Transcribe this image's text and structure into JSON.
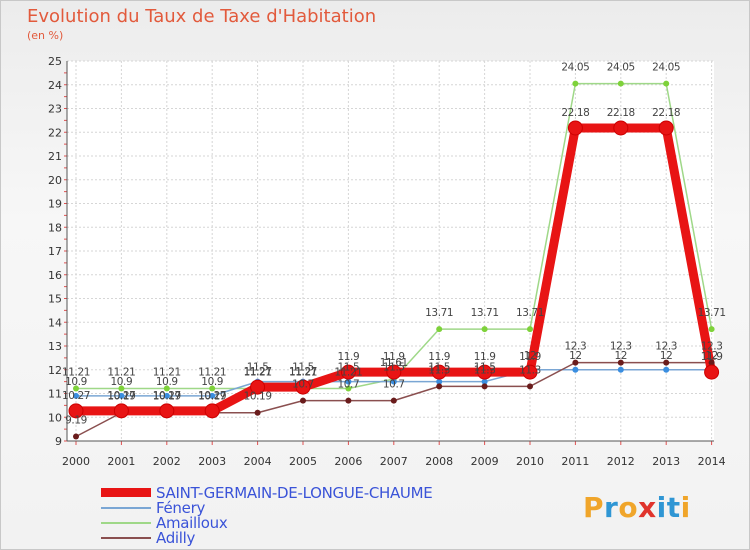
{
  "header": {
    "title": "Evolution du Taux de Taxe d'Habitation",
    "subtitle": "(en %)"
  },
  "brand": {
    "text": "Proxiti",
    "colors": [
      "#f0a52a",
      "#2f96d4",
      "#f0a52a",
      "#e0342c",
      "#2f96d4",
      "#2f96d4",
      "#f0a52a"
    ]
  },
  "chart_data": {
    "type": "line",
    "title": "Evolution du Taux de Taxe d'Habitation",
    "ylabel": "(en %)",
    "xlabel": "",
    "ylim": [
      9,
      25
    ],
    "yticks": [
      9,
      10,
      11,
      12,
      13,
      14,
      15,
      16,
      17,
      18,
      19,
      20,
      21,
      22,
      23,
      24,
      25
    ],
    "grid": true,
    "categories": [
      "2000",
      "2001",
      "2002",
      "2003",
      "2004",
      "2005",
      "2006",
      "2007",
      "2008",
      "2009",
      "2010",
      "2011",
      "2012",
      "2013",
      "2014"
    ],
    "series": [
      {
        "name": "SAINT-GERMAIN-DE-LONGUE-CHAUME",
        "color": "#e81414",
        "marker": "#e81414",
        "values": [
          10.27,
          10.27,
          10.27,
          10.27,
          11.27,
          11.27,
          11.9,
          11.9,
          11.9,
          11.9,
          11.9,
          22.18,
          22.18,
          22.18,
          11.9
        ],
        "labels": [
          "10.27",
          "10.27",
          "10.27",
          "10.27",
          "11.27",
          "11.27",
          "11.9",
          "11.9",
          "11.9",
          "11.9",
          "11.9",
          "22.18",
          "22.18",
          "22.18",
          "11.9"
        ]
      },
      {
        "name": "Fénery",
        "color": "#7aa6d4",
        "marker": "#3a8ee0",
        "values": [
          10.9,
          10.9,
          10.9,
          10.9,
          11.5,
          11.5,
          11.5,
          11.5,
          11.5,
          11.5,
          12.0,
          12.0,
          12.0,
          12.0,
          12.0
        ],
        "labels": [
          "10.9",
          "10.9",
          "10.9",
          "10.9",
          "11.5",
          "11.5",
          "11.5",
          "11.5",
          "11.5",
          "11.5",
          "12",
          "12",
          "12",
          "12",
          "12"
        ]
      },
      {
        "name": "Amailloux",
        "color": "#9fd888",
        "marker": "#7ed23a",
        "values": [
          11.21,
          11.21,
          11.21,
          11.21,
          11.21,
          11.21,
          11.21,
          11.61,
          13.71,
          13.71,
          13.71,
          24.05,
          24.05,
          24.05,
          13.71
        ],
        "labels": [
          "11.21",
          "11.21",
          "11.21",
          "11.21",
          "11.21",
          "11.21",
          "11.21",
          "11.61",
          "13.71",
          "13.71",
          "13.71",
          "24.05",
          "24.05",
          "24.05",
          "13.71"
        ]
      },
      {
        "name": "Adilly",
        "color": "#8a4f4f",
        "marker": "#6a1c1c",
        "values": [
          9.19,
          10.19,
          10.19,
          10.19,
          10.19,
          10.7,
          10.7,
          10.7,
          11.3,
          11.3,
          11.3,
          12.3,
          12.3,
          12.3,
          12.3
        ],
        "labels": [
          "9.19",
          "10.19",
          "10.19",
          "10.19",
          "10.19",
          "10.7",
          "10.7",
          "10.7",
          "11.3",
          "11.3",
          "11.3",
          "12.3",
          "12.3",
          "12.3",
          "12.3"
        ]
      }
    ]
  }
}
